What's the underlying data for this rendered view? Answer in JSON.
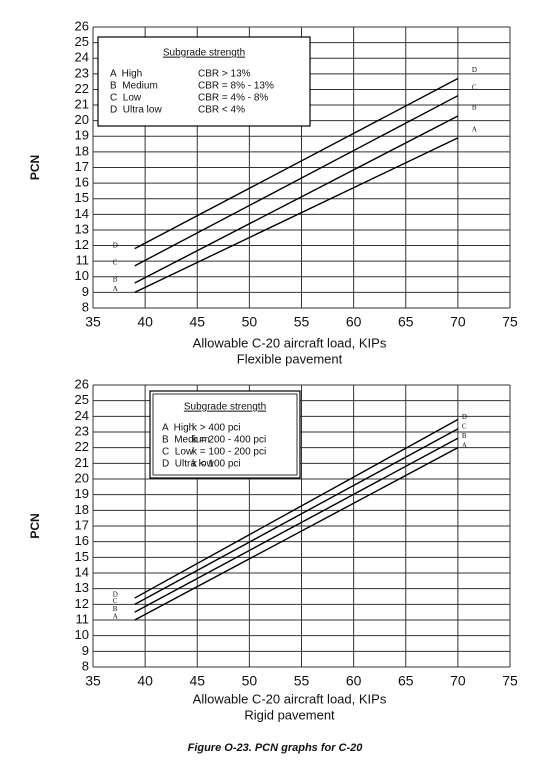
{
  "chart_data": [
    {
      "type": "line",
      "y_label": "PCN",
      "x_label": "Allowable C-20 aircraft load, KIPs",
      "subtitle": "Flexible pavement",
      "xlim": [
        35,
        75
      ],
      "xticks": [
        35,
        40,
        45,
        50,
        55,
        60,
        65,
        70,
        75
      ],
      "ylim": [
        8,
        26
      ],
      "yticks": [
        8,
        9,
        10,
        11,
        12,
        13,
        14,
        15,
        16,
        17,
        18,
        19,
        20,
        21,
        22,
        23,
        24,
        25,
        26
      ],
      "grid": true,
      "legend_title": "Subgrade strength",
      "color": "#000000",
      "x": [
        39,
        70
      ],
      "series": [
        {
          "name": "A  High",
          "description": "CBR > 13%",
          "label": "A",
          "values": [
            9.0,
            18.9
          ]
        },
        {
          "name": "B  Medium",
          "description": "CBR = 8% - 13%",
          "label": "B",
          "values": [
            9.6,
            20.3
          ]
        },
        {
          "name": "C  Low",
          "description": "CBR = 4% - 8%",
          "label": "C",
          "values": [
            10.7,
            21.6
          ]
        },
        {
          "name": "D  Ultra low",
          "description": "CBR < 4%",
          "label": "D",
          "values": [
            11.8,
            22.7
          ]
        }
      ]
    },
    {
      "type": "line",
      "y_label": "PCN",
      "x_label": "Allowable C-20 aircraft load, KIPs",
      "subtitle": "Rigid pavement",
      "xlim": [
        35,
        75
      ],
      "xticks": [
        35,
        40,
        45,
        50,
        55,
        60,
        65,
        70,
        75
      ],
      "ylim": [
        8,
        26
      ],
      "yticks": [
        8,
        9,
        10,
        11,
        12,
        13,
        14,
        15,
        16,
        17,
        18,
        19,
        20,
        21,
        22,
        23,
        24,
        25,
        26
      ],
      "grid": true,
      "legend_title": "Subgrade strength",
      "color": "#000000",
      "x": [
        39,
        70
      ],
      "series": [
        {
          "name": "A  High",
          "description": "k > 400 pci",
          "label": "A",
          "values": [
            11.0,
            22.0
          ]
        },
        {
          "name": "B  Medium",
          "description": "k = 200 - 400 pci",
          "label": "B",
          "values": [
            11.5,
            22.6
          ]
        },
        {
          "name": "C  Low",
          "description": "k = 100 - 200 pci",
          "label": "C",
          "values": [
            12.0,
            23.2
          ]
        },
        {
          "name": "D  Ultra low",
          "description": "k < 100 pci",
          "label": "D",
          "values": [
            12.4,
            23.8
          ]
        }
      ]
    }
  ],
  "caption": "Figure O-23.  PCN graphs for C-20"
}
